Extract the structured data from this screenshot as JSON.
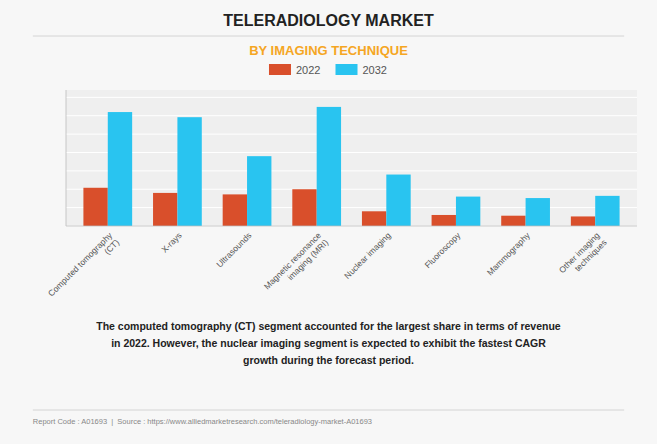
{
  "chart_data": {
    "type": "bar",
    "title": "TELERADIOLOGY MARKET",
    "subtitle": "BY IMAGING TECHNIQUE",
    "categories": [
      "Computed tomography\n(CT)",
      "X-rays",
      "Ultrasounds",
      "Magnetic resonance\nimaging (MRI)",
      "Nuclear imaging",
      "Fluoroscopy",
      "Mammography",
      "Other imaging\ntechniques"
    ],
    "series": [
      {
        "name": "2022",
        "color": "#d94f2b",
        "values": [
          0.52,
          0.45,
          0.43,
          0.5,
          0.2,
          0.15,
          0.14,
          0.13
        ]
      },
      {
        "name": "2032",
        "color": "#29c4f0",
        "values": [
          1.55,
          1.48,
          0.95,
          1.62,
          0.7,
          0.4,
          0.38,
          0.41
        ]
      }
    ],
    "ylim": [
      0,
      1.85
    ],
    "yticks": [
      0,
      0.25,
      0.5,
      0.75,
      1,
      1.25,
      1.5,
      1.75
    ],
    "grid": true,
    "legend": "top",
    "tick_labels": "x",
    "annotations": [
      "The computed tomography (CT) segment accounted for the largest share in terms of revenue\nin 2022. However, the nuclear imaging segment is expected to exhibit the fastest CAGR\ngrowth during the forecast period.",
      "Report Code : A01693  |  Source : https://www.alliedmarketresearch.com/teleradiology-market-A01693"
    ]
  }
}
